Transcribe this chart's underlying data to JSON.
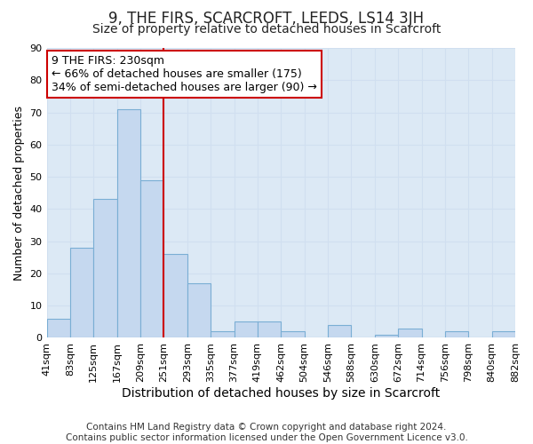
{
  "title": "9, THE FIRS, SCARCROFT, LEEDS, LS14 3JH",
  "subtitle": "Size of property relative to detached houses in Scarcroft",
  "xlabel": "Distribution of detached houses by size in Scarcroft",
  "ylabel": "Number of detached properties",
  "footer_line1": "Contains HM Land Registry data © Crown copyright and database right 2024.",
  "footer_line2": "Contains public sector information licensed under the Open Government Licence v3.0.",
  "annotation_line1": "9 THE FIRS: 230sqm",
  "annotation_line2": "← 66% of detached houses are smaller (175)",
  "annotation_line3": "34% of semi-detached houses are larger (90) →",
  "bar_values": [
    6,
    28,
    43,
    71,
    49,
    26,
    17,
    2,
    5,
    5,
    2,
    0,
    4,
    0,
    1,
    3,
    0,
    2,
    0,
    2
  ],
  "bar_labels": [
    "41sqm",
    "83sqm",
    "125sqm",
    "167sqm",
    "209sqm",
    "251sqm",
    "293sqm",
    "335sqm",
    "377sqm",
    "419sqm",
    "462sqm",
    "504sqm",
    "546sqm",
    "588sqm",
    "630sqm",
    "672sqm",
    "714sqm",
    "756sqm",
    "798sqm",
    "840sqm",
    "882sqm"
  ],
  "bar_color": "#c5d8ef",
  "bar_edge_color": "#7aaed4",
  "red_line_x": 4.5,
  "ylim": [
    0,
    90
  ],
  "yticks": [
    0,
    10,
    20,
    30,
    40,
    50,
    60,
    70,
    80,
    90
  ],
  "grid_color": "#d0dff0",
  "plot_bg_color": "#dce9f5",
  "fig_bg_color": "#ffffff",
  "annotation_box_color": "#ffffff",
  "annotation_box_edge": "#cc0000",
  "red_line_color": "#cc0000",
  "title_fontsize": 12,
  "subtitle_fontsize": 10,
  "xlabel_fontsize": 10,
  "ylabel_fontsize": 9,
  "tick_fontsize": 8,
  "annotation_fontsize": 9,
  "footer_fontsize": 7.5
}
